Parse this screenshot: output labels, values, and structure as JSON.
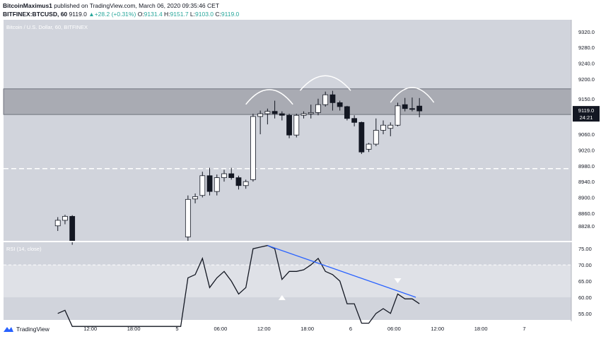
{
  "header": {
    "publisher": "BitcoinMaximus1",
    "published_text": "published on TradingView.com, March 06, 2020 09:35:46 CET",
    "symbol": "BITFINEX:BTCUSD, 60",
    "last": "9119.0",
    "change": "+28.2 (+0.31%)",
    "o_label": "O:",
    "o_value": "9131.4",
    "h_label": "H:",
    "h_value": "9151.7",
    "l_label": "L:",
    "l_value": "9103.0",
    "c_label": "C:",
    "c_value": "9119.0"
  },
  "footer": {
    "brand": "TradingView"
  },
  "colors": {
    "plot_bg": "#d1d4dc",
    "rsi_bg": "#d1d4dc",
    "zone": "#a9abb3",
    "rsi_band": "#dfe1e7",
    "trendline": "#2962ff",
    "price_tag": "#131722",
    "up_candle": "#ffffff",
    "down_candle": "#131722"
  },
  "chart_data": {
    "type": "candlestick",
    "title": "Bitcoin / U.S. Dollar, 60, BITFINEX",
    "last_price_label": "9119.0",
    "countdown_label": "24:21",
    "ylim": [
      8790,
      9350
    ],
    "y_ticks": [
      "9320.0",
      "9280.0",
      "9240.0",
      "9200.0",
      "9150.0",
      "9110.0",
      "9060.0",
      "9020.0",
      "8980.0",
      "8940.0",
      "8900.0",
      "8860.0",
      "8828.0"
    ],
    "y_tick_values": [
      9320,
      9280,
      9240,
      9200,
      9150,
      9110,
      9060,
      9020,
      8980,
      8940,
      8900,
      8860,
      8828
    ],
    "x_ticks": [
      {
        "label": "12:00",
        "hour": 12
      },
      {
        "label": "18:00",
        "hour": 18
      },
      {
        "label": "5",
        "hour": 24
      },
      {
        "label": "06:00",
        "hour": 30
      },
      {
        "label": "12:00",
        "hour": 36
      },
      {
        "label": "18:00",
        "hour": 42
      },
      {
        "label": "6",
        "hour": 48
      },
      {
        "label": "06:00",
        "hour": 54
      },
      {
        "label": "12:00",
        "hour": 60
      },
      {
        "label": "18:00",
        "hour": 66
      },
      {
        "label": "7",
        "hour": 72
      }
    ],
    "resistance_zone": [
      9110,
      9175
    ],
    "support_level": 8973,
    "candles": [
      {
        "hour": 7.5,
        "o": 8828,
        "h": 8850,
        "l": 8815,
        "c": 8842
      },
      {
        "hour": 8.5,
        "o": 8842,
        "h": 8856,
        "l": 8832,
        "c": 8852
      },
      {
        "hour": 9.5,
        "o": 8852,
        "h": 8855,
        "l": 8780,
        "c": 8790
      },
      {
        "hour": 25.5,
        "o": 8800,
        "h": 8905,
        "l": 8790,
        "c": 8895
      },
      {
        "hour": 26.5,
        "o": 8896,
        "h": 8910,
        "l": 8885,
        "c": 8902
      },
      {
        "hour": 27.5,
        "o": 8905,
        "h": 8965,
        "l": 8900,
        "c": 8955
      },
      {
        "hour": 28.5,
        "o": 8955,
        "h": 8975,
        "l": 8905,
        "c": 8915
      },
      {
        "hour": 29.5,
        "o": 8915,
        "h": 8958,
        "l": 8905,
        "c": 8950
      },
      {
        "hour": 30.5,
        "o": 8950,
        "h": 8970,
        "l": 8940,
        "c": 8960
      },
      {
        "hour": 31.5,
        "o": 8960,
        "h": 8975,
        "l": 8945,
        "c": 8950
      },
      {
        "hour": 32.5,
        "o": 8950,
        "h": 8955,
        "l": 8920,
        "c": 8930
      },
      {
        "hour": 33.5,
        "o": 8930,
        "h": 8945,
        "l": 8922,
        "c": 8940
      },
      {
        "hour": 34.5,
        "o": 8945,
        "h": 9112,
        "l": 8940,
        "c": 9105
      },
      {
        "hour": 35.5,
        "o": 9105,
        "h": 9120,
        "l": 9060,
        "c": 9112
      },
      {
        "hour": 36.5,
        "o": 9112,
        "h": 9125,
        "l": 9085,
        "c": 9118
      },
      {
        "hour": 37.5,
        "o": 9118,
        "h": 9145,
        "l": 9100,
        "c": 9112
      },
      {
        "hour": 38.5,
        "o": 9112,
        "h": 9118,
        "l": 9095,
        "c": 9108
      },
      {
        "hour": 39.5,
        "o": 9108,
        "h": 9112,
        "l": 9050,
        "c": 9058
      },
      {
        "hour": 40.5,
        "o": 9058,
        "h": 9112,
        "l": 9052,
        "c": 9108
      },
      {
        "hour": 41.5,
        "o": 9108,
        "h": 9118,
        "l": 9100,
        "c": 9112
      },
      {
        "hour": 42.5,
        "o": 9112,
        "h": 9135,
        "l": 9100,
        "c": 9115
      },
      {
        "hour": 43.5,
        "o": 9115,
        "h": 9150,
        "l": 9108,
        "c": 9135
      },
      {
        "hour": 44.5,
        "o": 9135,
        "h": 9168,
        "l": 9130,
        "c": 9160
      },
      {
        "hour": 45.5,
        "o": 9160,
        "h": 9170,
        "l": 9120,
        "c": 9140
      },
      {
        "hour": 46.5,
        "o": 9140,
        "h": 9145,
        "l": 9120,
        "c": 9130
      },
      {
        "hour": 47.5,
        "o": 9130,
        "h": 9132,
        "l": 9095,
        "c": 9100
      },
      {
        "hour": 48.5,
        "o": 9100,
        "h": 9108,
        "l": 9080,
        "c": 9090
      },
      {
        "hour": 49.5,
        "o": 9090,
        "h": 9092,
        "l": 9010,
        "c": 9015
      },
      {
        "hour": 50.5,
        "o": 9022,
        "h": 9038,
        "l": 9015,
        "c": 9035
      },
      {
        "hour": 51.5,
        "o": 9035,
        "h": 9100,
        "l": 9030,
        "c": 9070
      },
      {
        "hour": 52.5,
        "o": 9070,
        "h": 9095,
        "l": 9060,
        "c": 9083
      },
      {
        "hour": 53.5,
        "o": 9075,
        "h": 9090,
        "l": 9055,
        "c": 9083
      },
      {
        "hour": 54.5,
        "o": 9083,
        "h": 9140,
        "l": 9080,
        "c": 9132
      },
      {
        "hour": 55.5,
        "o": 9135,
        "h": 9152,
        "l": 9118,
        "c": 9125
      },
      {
        "hour": 56.5,
        "o": 9125,
        "h": 9153,
        "l": 9118,
        "c": 9123
      },
      {
        "hour": 57.5,
        "o": 9131.4,
        "h": 9151.7,
        "l": 9103,
        "c": 9119
      }
    ],
    "rsi": {
      "title": "RSI (14, close)",
      "ylim": [
        53,
        77
      ],
      "y_ticks": [
        "75.00",
        "70.00",
        "65.00",
        "60.00",
        "55.00"
      ],
      "y_tick_values": [
        75,
        70,
        65,
        60,
        55
      ],
      "band": [
        60,
        70
      ],
      "points": [
        {
          "hour": 7.5,
          "v": 55
        },
        {
          "hour": 8.5,
          "v": 56
        },
        {
          "hour": 9.5,
          "v": 51
        },
        {
          "hour": 24.5,
          "v": 51
        },
        {
          "hour": 25.5,
          "v": 66
        },
        {
          "hour": 26.5,
          "v": 67
        },
        {
          "hour": 27.5,
          "v": 72
        },
        {
          "hour": 28.5,
          "v": 63
        },
        {
          "hour": 29.5,
          "v": 66
        },
        {
          "hour": 30.5,
          "v": 68
        },
        {
          "hour": 31.5,
          "v": 65
        },
        {
          "hour": 32.5,
          "v": 61
        },
        {
          "hour": 33.5,
          "v": 63
        },
        {
          "hour": 34.5,
          "v": 75
        },
        {
          "hour": 35.5,
          "v": 75.5
        },
        {
          "hour": 36.5,
          "v": 76
        },
        {
          "hour": 37.5,
          "v": 75
        },
        {
          "hour": 38.5,
          "v": 65.5
        },
        {
          "hour": 39.5,
          "v": 68
        },
        {
          "hour": 40.5,
          "v": 68
        },
        {
          "hour": 41.5,
          "v": 68.5
        },
        {
          "hour": 42.5,
          "v": 70
        },
        {
          "hour": 43.5,
          "v": 72
        },
        {
          "hour": 44.5,
          "v": 68
        },
        {
          "hour": 45.5,
          "v": 67
        },
        {
          "hour": 46.5,
          "v": 65
        },
        {
          "hour": 47.5,
          "v": 58
        },
        {
          "hour": 48.5,
          "v": 58
        },
        {
          "hour": 49.5,
          "v": 52
        },
        {
          "hour": 50.5,
          "v": 52
        },
        {
          "hour": 51.5,
          "v": 55
        },
        {
          "hour": 52.5,
          "v": 56.5
        },
        {
          "hour": 53.5,
          "v": 55
        },
        {
          "hour": 54.5,
          "v": 61
        },
        {
          "hour": 55.5,
          "v": 59.5
        },
        {
          "hour": 56.5,
          "v": 59.5
        },
        {
          "hour": 57.5,
          "v": 58
        }
      ],
      "divergence_line": [
        {
          "hour": 36.5,
          "v": 76
        },
        {
          "hour": 57,
          "v": 60
        }
      ],
      "up_marker": {
        "hour": 38.5,
        "v": 60
      },
      "down_marker": {
        "hour": 54.5,
        "v": 65
      }
    },
    "arcs": [
      {
        "from": 33.5,
        "to": 40,
        "top": 9175
      },
      {
        "from": 41,
        "to": 48,
        "top": 9210
      },
      {
        "from": 53.5,
        "to": 59.5,
        "top": 9180
      }
    ]
  }
}
